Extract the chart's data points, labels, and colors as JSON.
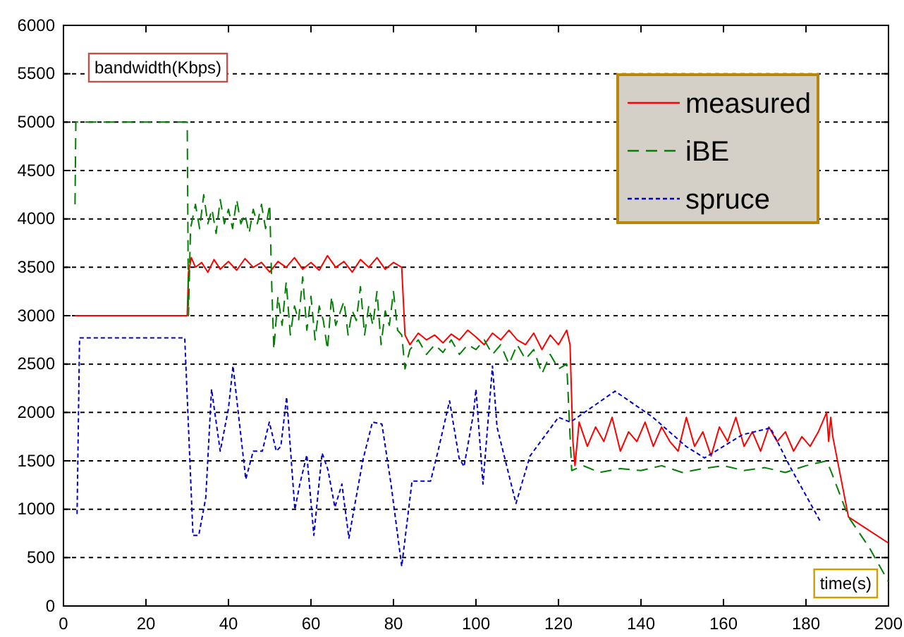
{
  "chart_data": {
    "type": "line",
    "xlabel": "time(s)",
    "ylabel": "bandwidth(Kbps)",
    "xlim": [
      0,
      200
    ],
    "xticks": [
      0,
      20,
      40,
      60,
      80,
      100,
      120,
      140,
      160,
      180,
      200
    ],
    "ylim": [
      0,
      6000
    ],
    "yticks": [
      0,
      500,
      1000,
      1500,
      2000,
      2500,
      3000,
      3500,
      4000,
      4500,
      5000,
      5500,
      6000
    ],
    "grid": "y",
    "legend": "top right",
    "series": [
      {
        "name": "measured",
        "color": "#ff0000",
        "line_style": "solid",
        "x": [
          2.7,
          30,
          30.3,
          31,
          32,
          33.5,
          35,
          36.5,
          38,
          40,
          42,
          44,
          46,
          48,
          50,
          52,
          54,
          56,
          58,
          60,
          62,
          64,
          66,
          68,
          70,
          72,
          74,
          76,
          78,
          80,
          82,
          82.8,
          84,
          86,
          88,
          90,
          92,
          94,
          96,
          98,
          100,
          102,
          104,
          106,
          108,
          110,
          112,
          114,
          116,
          118,
          120,
          122,
          122.8,
          123.5,
          124,
          125,
          127,
          129,
          131,
          133,
          135,
          137,
          139,
          141,
          143,
          145,
          147,
          149,
          151,
          153,
          155,
          157,
          159,
          161,
          163,
          165,
          167,
          169,
          171,
          173,
          175,
          177,
          179,
          181,
          183,
          185,
          185.5,
          186,
          186.5,
          190.3,
          200
        ],
        "values": [
          3000,
          3000,
          3450,
          3600,
          3500,
          3550,
          3450,
          3580,
          3480,
          3560,
          3470,
          3590,
          3500,
          3550,
          3450,
          3560,
          3500,
          3600,
          3480,
          3550,
          3470,
          3620,
          3500,
          3560,
          3450,
          3580,
          3500,
          3600,
          3480,
          3550,
          3500,
          2800,
          2700,
          2820,
          2750,
          2800,
          2720,
          2810,
          2750,
          2850,
          2780,
          2700,
          2820,
          2750,
          2850,
          2750,
          2700,
          2820,
          2650,
          2800,
          2700,
          2850,
          2700,
          1700,
          1450,
          1900,
          1650,
          1850,
          1700,
          1950,
          1600,
          1800,
          1700,
          1900,
          1650,
          1850,
          1700,
          1600,
          1950,
          1650,
          1800,
          1550,
          1850,
          1700,
          1950,
          1650,
          1800,
          1600,
          1850,
          1700,
          1800,
          1600,
          1750,
          1650,
          1800,
          2000,
          1700,
          1950,
          1750,
          920,
          650
        ]
      },
      {
        "name": "iBE",
        "color": "#008000",
        "line_style": "dashed",
        "x": [
          2.8,
          3,
          30,
          30.3,
          30.8,
          32,
          33,
          34,
          35,
          36,
          37,
          38,
          39,
          40,
          41,
          42,
          43,
          44,
          45,
          46,
          47,
          48,
          49,
          50,
          50.5,
          51,
          52,
          53,
          54,
          55,
          56,
          57,
          58,
          59,
          60,
          61,
          62,
          63,
          64,
          65,
          66,
          68,
          69,
          70,
          71,
          72,
          73,
          74,
          75,
          76,
          77,
          78,
          79,
          80,
          81,
          82,
          82.8,
          84,
          86,
          88,
          90,
          92,
          94,
          96,
          98,
          100,
          102,
          104,
          106,
          108,
          110,
          112,
          114,
          116,
          118,
          120,
          122,
          123.2,
          126,
          130,
          135,
          140,
          145,
          150,
          155,
          160,
          165,
          170,
          175,
          180,
          185,
          186,
          190.3,
          195.4,
          200
        ],
        "values": [
          4150,
          5000,
          5000,
          3000,
          3900,
          4150,
          3900,
          4250,
          3950,
          4100,
          3850,
          4200,
          3950,
          4100,
          3900,
          4200,
          3950,
          4050,
          3850,
          4100,
          3950,
          4150,
          3900,
          4150,
          3300,
          2650,
          3200,
          2900,
          3350,
          2800,
          3100,
          2950,
          3400,
          2850,
          3200,
          2750,
          3100,
          2950,
          2650,
          3200,
          2900,
          3150,
          2800,
          3050,
          2950,
          3300,
          2800,
          3100,
          2900,
          3250,
          2700,
          3050,
          2900,
          3250,
          2850,
          2800,
          2450,
          2650,
          2750,
          2600,
          2700,
          2620,
          2750,
          2600,
          2700,
          2650,
          2750,
          2600,
          2700,
          2500,
          2700,
          2550,
          2650,
          2400,
          2600,
          2450,
          2500,
          1400,
          1450,
          1380,
          1420,
          1400,
          1450,
          1380,
          1420,
          1450,
          1400,
          1430,
          1380,
          1450,
          1500,
          1400,
          920,
          600,
          250
        ]
      },
      {
        "name": "spruce",
        "color": "#0000cc",
        "line_style": "dotted",
        "x": [
          3.3,
          3.9,
          29.4,
          31.4,
          32.8,
          34.5,
          35.9,
          38,
          40,
          41.1,
          42.5,
          44.2,
          46,
          48.2,
          49.9,
          51.6,
          52.7,
          54.1,
          56.1,
          57.3,
          59,
          60.7,
          62.7,
          64.1,
          65.8,
          67.5,
          69.2,
          70.3,
          72.6,
          74.9,
          77.2,
          79.4,
          82,
          84.5,
          89,
          90.8,
          93.6,
          95.9,
          97.1,
          99.4,
          100,
          101.7,
          104,
          105.1,
          109.7,
          113.1,
          120,
          122.9,
          133.7,
          142.9,
          150.9,
          155.4,
          164.6,
          171.4,
          176,
          183.4
        ],
        "values": [
          950,
          2770,
          2770,
          730,
          730,
          1120,
          2240,
          1600,
          2040,
          2480,
          1950,
          1310,
          1600,
          1600,
          1900,
          1600,
          1650,
          2160,
          995,
          1260,
          1560,
          730,
          1580,
          1410,
          1020,
          1260,
          700,
          970,
          1510,
          1900,
          1880,
          1260,
          410,
          1290,
          1290,
          1600,
          2120,
          1530,
          1440,
          1990,
          2240,
          1260,
          2480,
          1850,
          1060,
          1550,
          1950,
          1900,
          2220,
          1950,
          1650,
          1530,
          1770,
          1840,
          1450,
          880
        ]
      }
    ]
  }
}
